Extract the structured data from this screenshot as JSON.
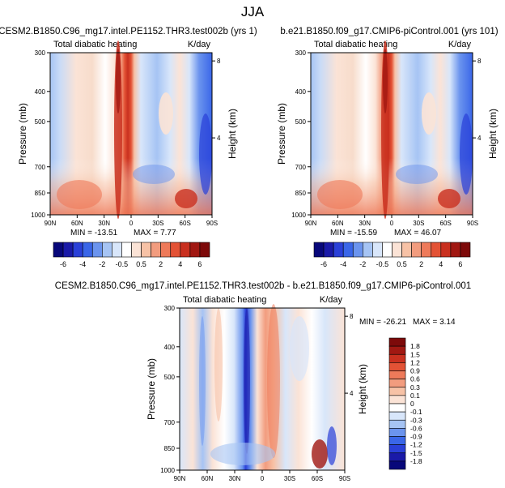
{
  "figure_title": "JJA",
  "colors": {
    "abs_palette": [
      "#08087a",
      "#1a1aa8",
      "#2a40d8",
      "#3a66e8",
      "#6b94ee",
      "#a6c4f4",
      "#d8e6fa",
      "#ffffff",
      "#fbe3d6",
      "#f7c2a6",
      "#f29c7e",
      "#ee7a5a",
      "#e35235",
      "#c9301f",
      "#a11812",
      "#7d0a0a"
    ],
    "diff_palette": [
      "#08087a",
      "#1a1aa8",
      "#2a40d8",
      "#3a66e8",
      "#6b94ee",
      "#a6c4f4",
      "#d8e6fa",
      "#ffffff",
      "#fbe3d6",
      "#f7c2a6",
      "#f29c7e",
      "#ee7a5a",
      "#e35235",
      "#c9301f",
      "#a11812",
      "#7d0a0a"
    ]
  },
  "chart_data": [
    {
      "type": "heatmap",
      "panel": "top-left",
      "title": "CESM2.B1850.C96_mg17.intel.PE1152.THR3.test002b (yrs 1)",
      "left_label": "Total diabatic heating",
      "right_label": "K/day",
      "ylabel": "Pressure (mb)",
      "right_ylabel": "Height (km)",
      "x_ticks": [
        "90N",
        "60N",
        "30N",
        "0",
        "30S",
        "60S",
        "90S"
      ],
      "x_values": [
        90,
        60,
        30,
        0,
        -30,
        -60,
        -90
      ],
      "y_ticks": [
        "300",
        "400",
        "500",
        "700",
        "850",
        "1000"
      ],
      "y_values": [
        300,
        400,
        500,
        700,
        850,
        1000
      ],
      "height_ticks": [
        "8",
        "4"
      ],
      "height_values": [
        8,
        4
      ],
      "ylim": [
        300,
        1000
      ],
      "min_label": "MIN = -13.51",
      "max_label": "MAX =   7.77",
      "min": -13.51,
      "max": 7.77
    },
    {
      "type": "heatmap",
      "panel": "top-right",
      "title": "b.e21.B1850.f09_g17.CMIP6-piControl.001 (yrs 101)",
      "left_label": "Total diabatic heating",
      "right_label": "K/day",
      "ylabel": "Pressure (mb)",
      "right_ylabel": "Height (km)",
      "x_ticks": [
        "90N",
        "60N",
        "30N",
        "0",
        "30S",
        "60S",
        "90S"
      ],
      "x_values": [
        90,
        60,
        30,
        0,
        -30,
        -60,
        -90
      ],
      "y_ticks": [
        "300",
        "400",
        "500",
        "700",
        "850",
        "1000"
      ],
      "y_values": [
        300,
        400,
        500,
        700,
        850,
        1000
      ],
      "height_ticks": [
        "8",
        "4"
      ],
      "height_values": [
        8,
        4
      ],
      "ylim": [
        300,
        1000
      ],
      "min_label": "MIN = -15.59",
      "max_label": "MAX = 46.07",
      "min": -15.59,
      "max": 46.07
    },
    {
      "type": "heatmap",
      "panel": "bottom",
      "title": "CESM2.B1850.C96_mg17.intel.PE1152.THR3.test002b - b.e21.B1850.f09_g17.CMIP6-piControl.001",
      "left_label": "Total diabatic heating",
      "right_label": "K/day",
      "ylabel": "Pressure (mb)",
      "right_ylabel": "Height (km)",
      "x_ticks": [
        "90N",
        "60N",
        "30N",
        "0",
        "30S",
        "60S",
        "90S"
      ],
      "x_values": [
        90,
        60,
        30,
        0,
        -30,
        -60,
        -90
      ],
      "y_ticks": [
        "300",
        "400",
        "500",
        "700",
        "850",
        "1000"
      ],
      "y_values": [
        300,
        400,
        500,
        700,
        850,
        1000
      ],
      "height_ticks": [
        "8",
        "4"
      ],
      "height_values": [
        8,
        4
      ],
      "ylim": [
        300,
        1000
      ],
      "min_label": "MIN = -26.21",
      "max_label": "MAX =   3.14",
      "min": -26.21,
      "max": 3.14
    }
  ],
  "colorbar_abs": {
    "orientation": "horizontal",
    "labels": [
      "-6",
      "-4",
      "-2",
      "-0.5",
      "0.5",
      "2",
      "4",
      "6"
    ]
  },
  "colorbar_diff": {
    "orientation": "vertical",
    "labels": [
      "1.8",
      "1.5",
      "1.2",
      "0.9",
      "0.6",
      "0.3",
      "0.1",
      "0",
      "-0.1",
      "-0.3",
      "-0.6",
      "-0.9",
      "-1.2",
      "-1.5",
      "-1.8"
    ]
  }
}
